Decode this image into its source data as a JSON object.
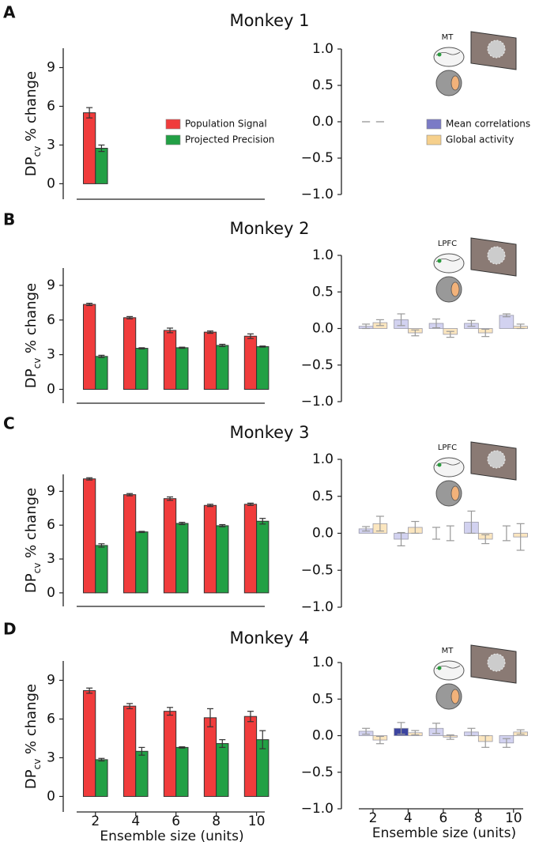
{
  "chart_data": [
    {
      "type": "bar",
      "panel_label": "A",
      "title": "Monkey 1",
      "ylabel": [
        "DP",
        "cv",
        " % change"
      ],
      "x": [
        2
      ],
      "xlim": [
        0.4,
        10.8
      ],
      "ylim": [
        -1.2,
        10.5
      ],
      "yticks": [
        0,
        3,
        6,
        9
      ],
      "series": [
        {
          "name": "Population Signal",
          "color": "#f03c3c",
          "values": [
            5.5
          ],
          "errors": [
            0.4
          ]
        },
        {
          "name": "Projected Precision",
          "color": "#22a045",
          "values": [
            2.75
          ],
          "errors": [
            0.25
          ]
        }
      ]
    },
    {
      "type": "bar",
      "area_label": "MT",
      "x": [
        2
      ],
      "xlim": [
        0.2,
        11
      ],
      "ylim": [
        -1,
        1
      ],
      "yticks": [
        {
          "value": -1,
          "label": "−1.0"
        },
        {
          "value": -0.5,
          "label": "−0.5"
        },
        {
          "value": 0,
          "label": "0.0"
        },
        {
          "value": 0.5,
          "label": "0.5"
        },
        {
          "value": 1,
          "label": "1.0"
        }
      ],
      "series": [
        {
          "name": "Mean correlations",
          "color": "#7b7bc6",
          "colors": [
            "#999999"
          ],
          "values": [
            0
          ],
          "errors": [
            0
          ]
        },
        {
          "name": "Global activity",
          "color": "#f6d08c",
          "colors": [
            "#999999"
          ],
          "values": [
            0
          ],
          "errors": [
            0
          ]
        }
      ]
    },
    {
      "type": "bar",
      "panel_label": "B",
      "title": "Monkey 2",
      "ylabel": [
        "DP",
        "cv",
        " % change"
      ],
      "x": [
        2,
        4,
        6,
        8,
        10
      ],
      "xlim": [
        0.4,
        10.8
      ],
      "ylim": [
        -1.2,
        10.5
      ],
      "yticks": [
        0,
        3,
        6,
        9
      ],
      "series": [
        {
          "color": "#f03c3c",
          "values": [
            7.35,
            6.2,
            5.1,
            4.95,
            4.6
          ],
          "errors": [
            0.1,
            0.1,
            0.2,
            0.1,
            0.2
          ]
        },
        {
          "color": "#22a045",
          "values": [
            2.85,
            3.55,
            3.6,
            3.8,
            3.7
          ],
          "errors": [
            0.1,
            0.05,
            0.05,
            0.1,
            0.05
          ]
        }
      ]
    },
    {
      "type": "bar",
      "area_label": "LPFC",
      "x": [
        2,
        4,
        6,
        8,
        10
      ],
      "xlim": [
        0.2,
        11
      ],
      "ylim": [
        -1,
        1
      ],
      "yticks": [
        {
          "value": -1,
          "label": "−1.0"
        },
        {
          "value": -0.5,
          "label": "−0.5"
        },
        {
          "value": 0,
          "label": "0.0"
        },
        {
          "value": 0.5,
          "label": "0.5"
        },
        {
          "value": 1,
          "label": "1.0"
        }
      ],
      "series": [
        {
          "color": "#d2d2f0",
          "values": [
            0.03,
            0.12,
            0.07,
            0.07,
            0.18
          ],
          "errors": [
            0.03,
            0.08,
            0.06,
            0.04,
            0.02
          ]
        },
        {
          "color": "#fbe6bf",
          "values": [
            0.08,
            -0.06,
            -0.08,
            -0.06,
            0.03
          ],
          "errors": [
            0.04,
            0.04,
            0.04,
            0.05,
            0.03
          ]
        }
      ]
    },
    {
      "type": "bar",
      "panel_label": "C",
      "title": "Monkey 3",
      "ylabel": [
        "DP",
        "cv",
        " % change"
      ],
      "x": [
        2,
        4,
        6,
        8,
        10
      ],
      "xlim": [
        0.4,
        10.8
      ],
      "ylim": [
        -1.2,
        10.5
      ],
      "yticks": [
        0,
        3,
        6,
        9
      ],
      "series": [
        {
          "color": "#f03c3c",
          "values": [
            10.1,
            8.7,
            8.35,
            7.75,
            7.85
          ],
          "errors": [
            0.1,
            0.1,
            0.15,
            0.1,
            0.1
          ]
        },
        {
          "color": "#22a045",
          "values": [
            4.2,
            5.4,
            6.15,
            5.95,
            6.35
          ],
          "errors": [
            0.15,
            0.05,
            0.1,
            0.1,
            0.25
          ]
        }
      ]
    },
    {
      "type": "bar",
      "area_label": "LPFC",
      "x": [
        2,
        4,
        6,
        8,
        10
      ],
      "xlim": [
        0.2,
        11
      ],
      "ylim": [
        -1,
        1
      ],
      "yticks": [
        {
          "value": -1,
          "label": "−1.0"
        },
        {
          "value": -0.5,
          "label": "−0.5"
        },
        {
          "value": 0,
          "label": "0.0"
        },
        {
          "value": 0.5,
          "label": "0.5"
        },
        {
          "value": 1,
          "label": "1.0"
        }
      ],
      "series": [
        {
          "color": "#d2d2f0",
          "values": [
            0.06,
            -0.08,
            0.0,
            0.15,
            0.0
          ],
          "errors": [
            0.03,
            0.09,
            0.08,
            0.15,
            0.1
          ]
        },
        {
          "color": "#fbe6bf",
          "values": [
            0.13,
            0.08,
            0.0,
            -0.08,
            -0.05
          ],
          "errors": [
            0.1,
            0.08,
            0.1,
            0.06,
            0.18
          ]
        }
      ]
    },
    {
      "type": "bar",
      "panel_label": "D",
      "title": "Monkey 4",
      "ylabel": [
        "DP",
        "cv",
        " % change"
      ],
      "xlabel": "Ensemble size (units)",
      "x": [
        2,
        4,
        6,
        8,
        10
      ],
      "xlim": [
        0.4,
        10.8
      ],
      "ylim": [
        -1.2,
        10.5
      ],
      "yticks": [
        0,
        3,
        6,
        9
      ],
      "xticks": [
        2,
        4,
        6,
        8,
        10
      ],
      "series": [
        {
          "color": "#f03c3c",
          "values": [
            8.2,
            7.0,
            6.6,
            6.1,
            6.2
          ],
          "errors": [
            0.2,
            0.2,
            0.3,
            0.7,
            0.4
          ]
        },
        {
          "color": "#22a045",
          "values": [
            2.85,
            3.5,
            3.8,
            4.1,
            4.4
          ],
          "errors": [
            0.1,
            0.3,
            0.05,
            0.3,
            0.7
          ]
        }
      ]
    },
    {
      "type": "bar",
      "area_label": "MT",
      "xlabel": "Ensemble size (units)",
      "x": [
        2,
        4,
        6,
        8,
        10
      ],
      "xlim": [
        0.2,
        11
      ],
      "ylim": [
        -1,
        1
      ],
      "xticks": [
        2,
        4,
        6,
        8,
        10
      ],
      "yticks": [
        {
          "value": -1,
          "label": "−1.0"
        },
        {
          "value": -0.5,
          "label": "−0.5"
        },
        {
          "value": 0,
          "label": "0.0"
        },
        {
          "value": 0.5,
          "label": "0.5"
        },
        {
          "value": 1,
          "label": "1.0"
        }
      ],
      "series": [
        {
          "color": "#d2d2f0",
          "colors": [
            "#d2d2f0",
            "#3c44a0",
            "#d2d2f0",
            "#d2d2f0",
            "#d2d2f0"
          ],
          "values": [
            0.06,
            0.1,
            0.1,
            0.05,
            -0.1
          ],
          "errors": [
            0.04,
            0.08,
            0.07,
            0.05,
            0.06
          ]
        },
        {
          "color": "#fbe6bf",
          "values": [
            -0.06,
            0.04,
            -0.02,
            -0.08,
            0.05
          ],
          "errors": [
            0.05,
            0.03,
            0.03,
            0.08,
            0.03
          ]
        }
      ]
    }
  ]
}
